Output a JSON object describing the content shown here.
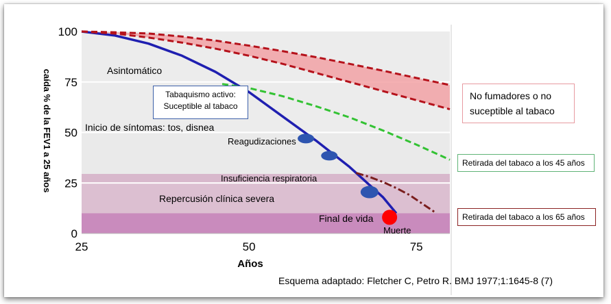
{
  "chart_data": {
    "type": "line",
    "xlabel": "Años",
    "ylabel": "caída % de la FEV1 a 25 años",
    "xlim": [
      25,
      80
    ],
    "ylim": [
      0,
      100
    ],
    "x_ticks": [
      "25",
      "50",
      "75"
    ],
    "y_ticks": [
      "0",
      "25",
      "50",
      "75",
      "100"
    ],
    "grid": "horizontal",
    "zones": [
      {
        "label": "Asintomático",
        "from": 50,
        "to": 100,
        "color": "#ececec"
      },
      {
        "label": "Inicio de síntomas: tos, disnea",
        "from": 29.5,
        "to": 50,
        "color": "#eaeaea"
      },
      {
        "label": "Insuficiencia respiratoria",
        "from": 25,
        "to": 29.5,
        "color": "#d8b8cc"
      },
      {
        "label": "Repercusión clínica severa",
        "from": 10,
        "to": 25,
        "color": "#dcbfd1"
      },
      {
        "label": "",
        "from": 0,
        "to": 10,
        "color": "#c98bbd"
      }
    ],
    "series": [
      {
        "key": "smoker",
        "color": "#1f1fb0",
        "style": "solid",
        "x": [
          25,
          30,
          35,
          40,
          45,
          50,
          55,
          60,
          65,
          70,
          72
        ],
        "y": [
          100,
          98,
          94,
          88,
          80,
          70,
          58,
          46,
          33,
          18,
          10
        ]
      },
      {
        "key": "nonsmoker_upper",
        "color": "#b5121b",
        "style": "dashed",
        "x": [
          25,
          30,
          35,
          40,
          45,
          50,
          55,
          60,
          65,
          70,
          75,
          80
        ],
        "y": [
          100,
          99.6,
          99,
          97.5,
          95.5,
          93,
          90.3,
          87.3,
          84,
          80.6,
          77,
          73.5
        ]
      },
      {
        "key": "nonsmoker_lower",
        "color": "#b5121b",
        "style": "dashed",
        "x": [
          25,
          30,
          35,
          40,
          45,
          50,
          55,
          60,
          65,
          70,
          75,
          80
        ],
        "y": [
          100,
          99,
          97,
          94.5,
          91.5,
          88,
          84,
          79.5,
          75,
          70.5,
          66,
          61.5
        ]
      },
      {
        "key": "quit45",
        "label": "Retirada del tabaco a los  45 años",
        "color": "#33c233",
        "style": "dashed",
        "x": [
          46,
          50,
          55,
          60,
          65,
          70,
          75,
          80
        ],
        "y": [
          74,
          72,
          68,
          63,
          57.5,
          51,
          44,
          36.5
        ]
      },
      {
        "key": "quit65",
        "label": "Retirada del tabaco a los 65 años",
        "color": "#7a1e1e",
        "style": "dashdot",
        "x": [
          66,
          68,
          70,
          72,
          74,
          76,
          78
        ],
        "y": [
          30,
          28,
          25.5,
          22.5,
          19,
          14.5,
          10
        ]
      }
    ],
    "points": [
      {
        "x": 58.5,
        "y": 47,
        "color": "#2e55b0",
        "rx": 12,
        "ry": 7
      },
      {
        "x": 62,
        "y": 38.5,
        "color": "#2e55b0",
        "rx": 12,
        "ry": 7
      },
      {
        "x": 68,
        "y": 20.5,
        "color": "#2e55b0",
        "rx": 13,
        "ry": 9
      },
      {
        "x": 71,
        "y": 8,
        "color": "#ff0000",
        "rx": 11,
        "ry": 11
      }
    ],
    "annotations": {
      "asintomatico": "Asintomático",
      "inicio": "Inicio de síntomas: tos, disnea",
      "reagudizaciones": "Reagudizaciones",
      "insuficiencia": "Insuficiencia respiratoria",
      "repercusion": "Repercusión clínica severa",
      "final_vida": "Final de vida",
      "muerte": "Muerte"
    },
    "legend_boxes": {
      "tabaquismo_1": "Tabaquismo activo:",
      "tabaquismo_2": "Suceptible al tabaco",
      "nofumadores_1": "No fumadores o no",
      "nofumadores_2": "suceptible al tabaco",
      "retirada45": "Retirada del tabaco a los  45 años",
      "retirada65": "Retirada del tabaco a los 65 años"
    },
    "source": "Esquema adaptado:  Fletcher C, Petro R. BMJ 1977;1:1645-8 (7)"
  }
}
